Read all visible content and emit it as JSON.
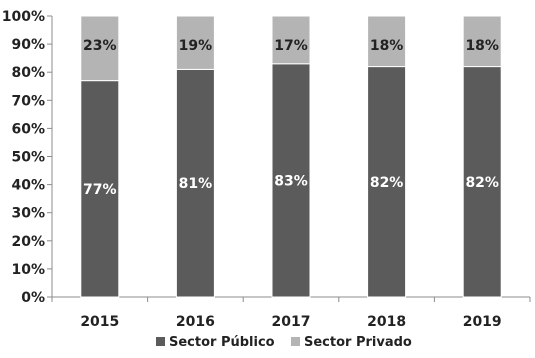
{
  "chart_data": {
    "type": "bar",
    "stacked": true,
    "categories": [
      "2015",
      "2016",
      "2017",
      "2018",
      "2019"
    ],
    "series": [
      {
        "name": "Sector Público",
        "values": [
          77,
          81,
          83,
          82,
          82
        ],
        "color": "#5b5b5b",
        "labels": [
          "77%",
          "81%",
          "83%",
          "82%",
          "82%"
        ],
        "label_color": "#ffffff"
      },
      {
        "name": "Sector Privado",
        "values": [
          23,
          19,
          17,
          18,
          18
        ],
        "color": "#b4b4b4",
        "labels": [
          "23%",
          "19%",
          "17%",
          "18%",
          "18%"
        ],
        "label_color": "#222222"
      }
    ],
    "ylim": [
      0,
      100
    ],
    "yticks": [
      0,
      10,
      20,
      30,
      40,
      50,
      60,
      70,
      80,
      90,
      100
    ],
    "ytick_labels": [
      "0%",
      "10%",
      "20%",
      "30%",
      "40%",
      "50%",
      "60%",
      "70%",
      "80%",
      "90%",
      "100%"
    ],
    "grid": false,
    "legend": "bottom",
    "title": "",
    "xlabel": "",
    "ylabel": ""
  }
}
